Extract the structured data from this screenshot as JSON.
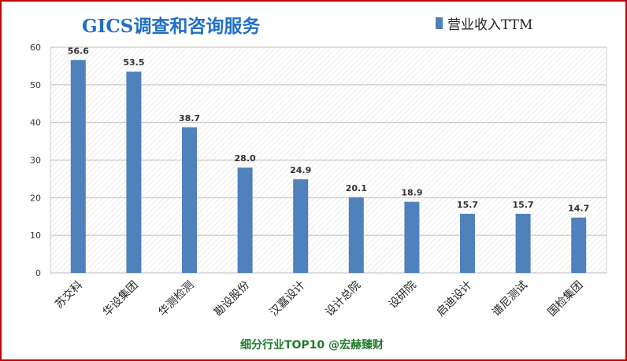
{
  "chart_data": {
    "type": "bar",
    "title": "GICS调查和咨询服务",
    "footer": "细分行业TOP10 @宏赫臻财",
    "categories": [
      "苏交科",
      "华设集团",
      "华测检测",
      "勘设股份",
      "汉嘉设计",
      "设计总院",
      "设研院",
      "启迪设计",
      "谱尼测试",
      "国检集团"
    ],
    "series": [
      {
        "name": "营业收入TTM",
        "values": [
          56.6,
          53.5,
          38.7,
          28.0,
          24.9,
          20.1,
          18.9,
          15.7,
          15.7,
          14.7
        ],
        "color": "#4f81bd"
      }
    ],
    "value_labels": [
      "56.6",
      "53.5",
      "38.7",
      "28.0",
      "24.9",
      "20.1",
      "18.9",
      "15.7",
      "15.7",
      "14.7"
    ],
    "ylim": [
      0,
      60
    ],
    "yticks": [
      "0",
      "10",
      "20",
      "30",
      "40",
      "50",
      "60"
    ],
    "grid": true,
    "legend_position": "top-right"
  }
}
